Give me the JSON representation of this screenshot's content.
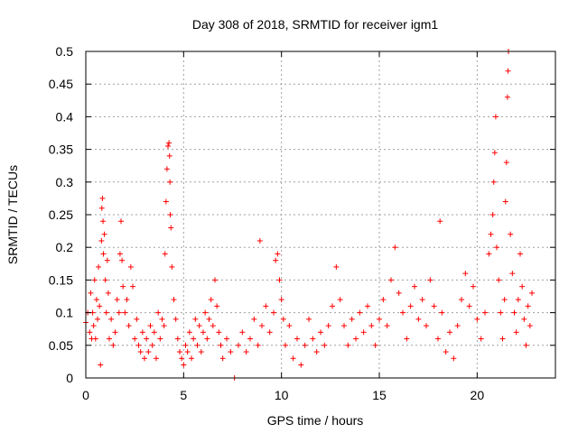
{
  "chart_data": {
    "type": "scatter",
    "title": "Day 308 of 2018, SRMTID for receiver igm1",
    "xlabel": "GPS time / hours",
    "ylabel": "SRMTID / TECUs",
    "xlim": [
      0,
      24
    ],
    "ylim": [
      0,
      0.5
    ],
    "x_ticks": [
      0,
      5,
      10,
      15,
      20
    ],
    "x_tick_labels": [
      "0",
      "5",
      "10",
      "15",
      "20"
    ],
    "y_ticks": [
      0,
      0.05,
      0.1,
      0.15,
      0.2,
      0.25,
      0.3,
      0.35,
      0.4,
      0.45,
      0.5
    ],
    "y_tick_labels": [
      "0",
      "0.05",
      "0.1",
      "0.15",
      "0.2",
      "0.25",
      "0.3",
      "0.35",
      "0.4",
      "0.45",
      "0.5"
    ],
    "grid": true,
    "marker": "+",
    "marker_color": "#ff0000",
    "series": [
      {
        "name": "SRMTID",
        "points": [
          [
            0.0,
            0.085
          ],
          [
            0.1,
            0.1
          ],
          [
            0.2,
            0.07
          ],
          [
            0.25,
            0.13
          ],
          [
            0.3,
            0.06
          ],
          [
            0.35,
            0.1
          ],
          [
            0.4,
            0.08
          ],
          [
            0.45,
            0.15
          ],
          [
            0.5,
            0.06
          ],
          [
            0.55,
            0.12
          ],
          [
            0.6,
            0.09
          ],
          [
            0.65,
            0.17
          ],
          [
            0.7,
            0.11
          ],
          [
            0.75,
            0.02
          ],
          [
            0.8,
            0.21
          ],
          [
            0.82,
            0.26
          ],
          [
            0.85,
            0.275
          ],
          [
            0.88,
            0.24
          ],
          [
            0.9,
            0.19
          ],
          [
            0.95,
            0.22
          ],
          [
            1.0,
            0.15
          ],
          [
            1.05,
            0.1
          ],
          [
            1.1,
            0.18
          ],
          [
            1.15,
            0.13
          ],
          [
            1.2,
            0.06
          ],
          [
            1.3,
            0.09
          ],
          [
            1.4,
            0.05
          ],
          [
            1.5,
            0.07
          ],
          [
            1.6,
            0.12
          ],
          [
            1.7,
            0.1
          ],
          [
            1.75,
            0.19
          ],
          [
            1.8,
            0.24
          ],
          [
            1.85,
            0.18
          ],
          [
            1.9,
            0.14
          ],
          [
            2.0,
            0.1
          ],
          [
            2.1,
            0.12
          ],
          [
            2.2,
            0.08
          ],
          [
            2.3,
            0.17
          ],
          [
            2.4,
            0.14
          ],
          [
            2.5,
            0.06
          ],
          [
            2.6,
            0.09
          ],
          [
            2.7,
            0.05
          ],
          [
            2.8,
            0.04
          ],
          [
            2.9,
            0.07
          ],
          [
            3.0,
            0.03
          ],
          [
            3.1,
            0.06
          ],
          [
            3.2,
            0.04
          ],
          [
            3.3,
            0.08
          ],
          [
            3.4,
            0.05
          ],
          [
            3.5,
            0.07
          ],
          [
            3.6,
            0.03
          ],
          [
            3.7,
            0.1
          ],
          [
            3.8,
            0.06
          ],
          [
            3.9,
            0.09
          ],
          [
            4.0,
            0.08
          ],
          [
            4.05,
            0.19
          ],
          [
            4.1,
            0.27
          ],
          [
            4.15,
            0.32
          ],
          [
            4.2,
            0.355
          ],
          [
            4.25,
            0.36
          ],
          [
            4.28,
            0.34
          ],
          [
            4.3,
            0.3
          ],
          [
            4.32,
            0.25
          ],
          [
            4.35,
            0.23
          ],
          [
            4.4,
            0.17
          ],
          [
            4.5,
            0.12
          ],
          [
            4.6,
            0.09
          ],
          [
            4.7,
            0.06
          ],
          [
            4.8,
            0.04
          ],
          [
            4.9,
            0.03
          ],
          [
            5.0,
            0.02
          ],
          [
            5.1,
            0.05
          ],
          [
            5.2,
            0.04
          ],
          [
            5.3,
            0.07
          ],
          [
            5.4,
            0.03
          ],
          [
            5.5,
            0.06
          ],
          [
            5.6,
            0.09
          ],
          [
            5.7,
            0.05
          ],
          [
            5.8,
            0.08
          ],
          [
            5.9,
            0.04
          ],
          [
            6.0,
            0.07
          ],
          [
            6.1,
            0.1
          ],
          [
            6.2,
            0.06
          ],
          [
            6.3,
            0.09
          ],
          [
            6.4,
            0.12
          ],
          [
            6.5,
            0.08
          ],
          [
            6.6,
            0.15
          ],
          [
            6.7,
            0.11
          ],
          [
            6.8,
            0.07
          ],
          [
            6.9,
            0.05
          ],
          [
            7.0,
            0.03
          ],
          [
            7.2,
            0.06
          ],
          [
            7.4,
            0.04
          ],
          [
            7.6,
            0.0
          ],
          [
            7.8,
            0.05
          ],
          [
            8.0,
            0.07
          ],
          [
            8.2,
            0.04
          ],
          [
            8.4,
            0.06
          ],
          [
            8.6,
            0.09
          ],
          [
            8.8,
            0.05
          ],
          [
            8.9,
            0.21
          ],
          [
            9.0,
            0.08
          ],
          [
            9.2,
            0.11
          ],
          [
            9.4,
            0.07
          ],
          [
            9.6,
            0.1
          ],
          [
            9.7,
            0.18
          ],
          [
            9.8,
            0.19
          ],
          [
            9.9,
            0.15
          ],
          [
            10.0,
            0.12
          ],
          [
            10.1,
            0.09
          ],
          [
            10.2,
            0.05
          ],
          [
            10.4,
            0.08
          ],
          [
            10.6,
            0.03
          ],
          [
            10.8,
            0.06
          ],
          [
            11.0,
            0.02
          ],
          [
            11.2,
            0.05
          ],
          [
            11.4,
            0.09
          ],
          [
            11.6,
            0.06
          ],
          [
            11.8,
            0.04
          ],
          [
            12.0,
            0.07
          ],
          [
            12.2,
            0.05
          ],
          [
            12.4,
            0.08
          ],
          [
            12.6,
            0.11
          ],
          [
            12.8,
            0.17
          ],
          [
            13.0,
            0.12
          ],
          [
            13.2,
            0.08
          ],
          [
            13.4,
            0.05
          ],
          [
            13.6,
            0.09
          ],
          [
            13.8,
            0.06
          ],
          [
            14.0,
            0.1
          ],
          [
            14.2,
            0.07
          ],
          [
            14.4,
            0.11
          ],
          [
            14.6,
            0.08
          ],
          [
            14.8,
            0.05
          ],
          [
            15.0,
            0.09
          ],
          [
            15.2,
            0.12
          ],
          [
            15.4,
            0.08
          ],
          [
            15.6,
            0.15
          ],
          [
            15.8,
            0.2
          ],
          [
            16.0,
            0.13
          ],
          [
            16.2,
            0.1
          ],
          [
            16.4,
            0.06
          ],
          [
            16.6,
            0.11
          ],
          [
            16.8,
            0.14
          ],
          [
            17.0,
            0.09
          ],
          [
            17.2,
            0.12
          ],
          [
            17.4,
            0.08
          ],
          [
            17.6,
            0.15
          ],
          [
            17.8,
            0.11
          ],
          [
            18.0,
            0.06
          ],
          [
            18.1,
            0.24
          ],
          [
            18.2,
            0.1
          ],
          [
            18.4,
            0.04
          ],
          [
            18.6,
            0.07
          ],
          [
            18.8,
            0.03
          ],
          [
            19.0,
            0.08
          ],
          [
            19.2,
            0.12
          ],
          [
            19.4,
            0.16
          ],
          [
            19.6,
            0.11
          ],
          [
            19.8,
            0.14
          ],
          [
            20.0,
            0.09
          ],
          [
            20.2,
            0.06
          ],
          [
            20.4,
            0.1
          ],
          [
            20.6,
            0.19
          ],
          [
            20.7,
            0.22
          ],
          [
            20.8,
            0.25
          ],
          [
            20.85,
            0.3
          ],
          [
            20.9,
            0.345
          ],
          [
            20.95,
            0.4
          ],
          [
            21.0,
            0.2
          ],
          [
            21.1,
            0.15
          ],
          [
            21.2,
            0.1
          ],
          [
            21.3,
            0.06
          ],
          [
            21.4,
            0.12
          ],
          [
            21.45,
            0.27
          ],
          [
            21.5,
            0.33
          ],
          [
            21.55,
            0.43
          ],
          [
            21.58,
            0.47
          ],
          [
            21.6,
            0.5
          ],
          [
            21.7,
            0.22
          ],
          [
            21.8,
            0.16
          ],
          [
            21.9,
            0.1
          ],
          [
            22.0,
            0.07
          ],
          [
            22.1,
            0.12
          ],
          [
            22.2,
            0.19
          ],
          [
            22.3,
            0.14
          ],
          [
            22.4,
            0.09
          ],
          [
            22.5,
            0.05
          ],
          [
            22.6,
            0.11
          ],
          [
            22.7,
            0.08
          ],
          [
            22.8,
            0.13
          ]
        ]
      }
    ]
  }
}
